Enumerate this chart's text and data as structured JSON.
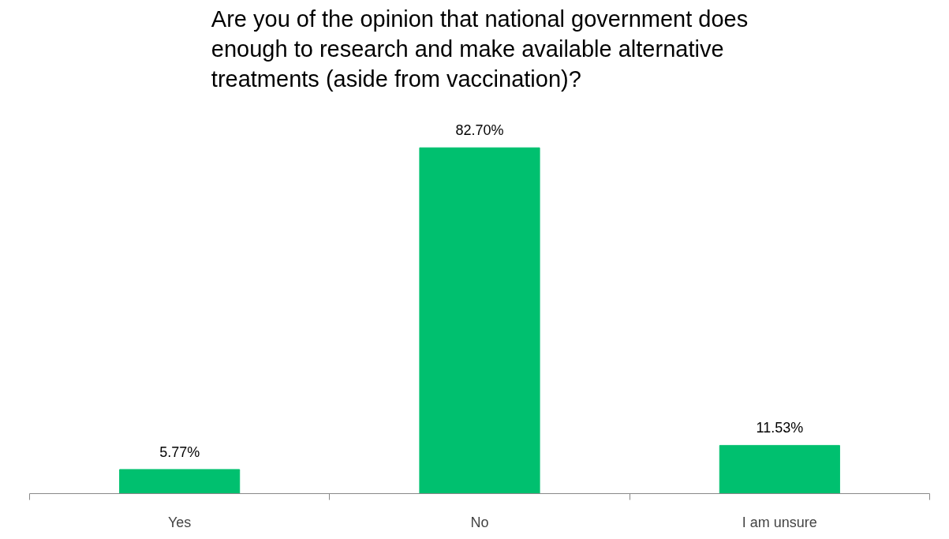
{
  "chart_data": {
    "type": "bar",
    "title": "Are you of the opinion that national government does enough to research and make available alternative treatments (aside from vaccination)?",
    "categories": [
      "Yes",
      "No",
      "I am unsure"
    ],
    "values": [
      5.77,
      82.7,
      11.53
    ],
    "value_labels": [
      "5.77%",
      "82.70%",
      "11.53%"
    ],
    "color": "#00c06f"
  }
}
